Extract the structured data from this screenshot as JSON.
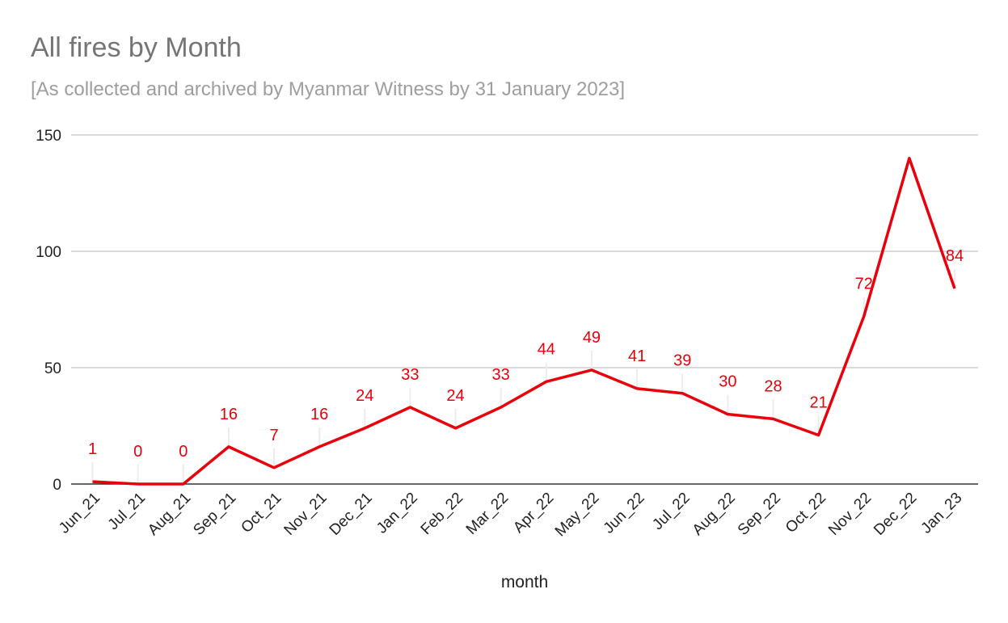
{
  "chart_data": {
    "type": "line",
    "title": "All fires by Month",
    "subtitle": "[As collected and archived by Myanmar Witness by 31 January 2023]",
    "xlabel": "month",
    "ylabel": "",
    "categories": [
      "Jun_21",
      "Jul_21",
      "Aug_21",
      "Sep_21",
      "Oct_21",
      "Nov_21",
      "Dec_21",
      "Jan_22",
      "Feb_22",
      "Mar_22",
      "Apr_22",
      "May_22",
      "Jun_22",
      "Jul_22",
      "Aug_22",
      "Sep_22",
      "Oct_22",
      "Nov_22",
      "Dec_22",
      "Jan_23"
    ],
    "series": [
      {
        "values": [
          1,
          0,
          0,
          16,
          7,
          16,
          24,
          33,
          24,
          33,
          44,
          49,
          41,
          39,
          30,
          28,
          21,
          72,
          140,
          84
        ],
        "labels": [
          "1",
          "0",
          "0",
          "16",
          "7",
          "16",
          "24",
          "33",
          "24",
          "33",
          "44",
          "49",
          "41",
          "39",
          "30",
          "28",
          "21",
          "72",
          "",
          "84"
        ],
        "color": "#e8000b"
      }
    ],
    "ylim": [
      0,
      150
    ],
    "yticks": [
      0,
      50,
      100,
      150
    ],
    "grid": true,
    "legend": "none"
  }
}
